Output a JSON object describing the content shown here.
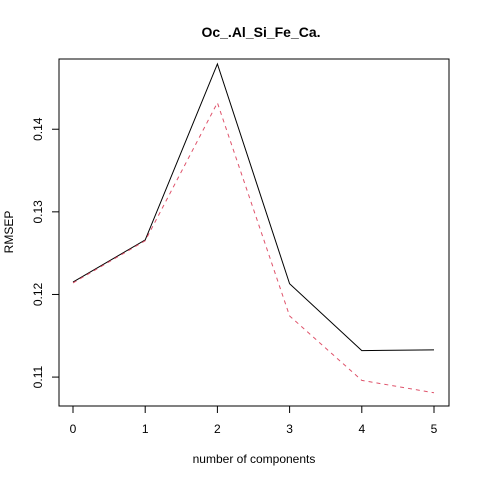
{
  "chart_data": {
    "type": "line",
    "title": "Oc_.Al_Si_Fe_Ca.",
    "xlabel": "number of components",
    "ylabel": "RMSEP",
    "x": [
      0,
      1,
      2,
      3,
      4,
      5
    ],
    "xlim": [
      0,
      5
    ],
    "ylim": [
      0.1065,
      0.1485
    ],
    "x_ticks": [
      "0",
      "1",
      "2",
      "3",
      "4",
      "5"
    ],
    "y_ticks": [
      0.11,
      0.12,
      0.13,
      0.14
    ],
    "y_tick_labels": [
      "0.11",
      "0.12",
      "0.13",
      "0.14"
    ],
    "grid": false,
    "legend": "none",
    "series": [
      {
        "values": [
          0.1215,
          0.1266,
          0.1479,
          0.1213,
          0.1132,
          0.1133
        ],
        "color": "#000000",
        "style": "solid"
      },
      {
        "values": [
          0.1214,
          0.1265,
          0.1432,
          0.1174,
          0.1096,
          0.1081
        ],
        "color": "#DF536B",
        "style": "dashed"
      }
    ]
  }
}
